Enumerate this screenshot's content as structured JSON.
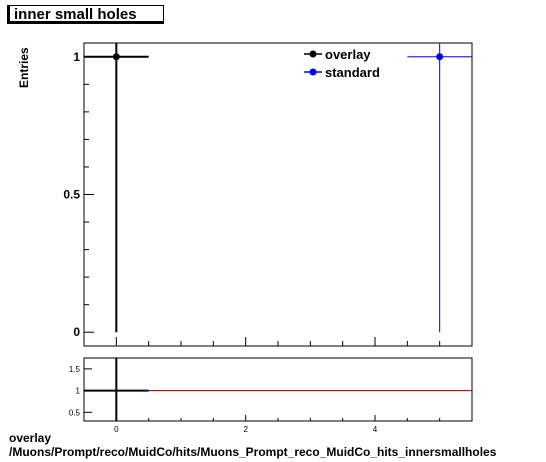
{
  "title": "inner small holes",
  "footer": {
    "line1": "overlay",
    "line2": "/Muons/Prompt/reco/MuidCo/hits/Muons_Prompt_reco_MuidCo_hits_innersmallholes"
  },
  "colors": {
    "overlay": "#000000",
    "standard": "#0000ff",
    "ratio_line": "#8b0000",
    "frame": "#000000"
  },
  "chart_data": [
    {
      "type": "scatter",
      "ylabel": "Entries",
      "xlim": [
        -0.5,
        5.5
      ],
      "ylim": [
        -0.05,
        1.05
      ],
      "yticks": [
        0,
        0.5,
        1
      ],
      "ytick_labels": [
        "0",
        "0.5",
        "1"
      ],
      "legend": {
        "placement": "top-right",
        "entries": [
          "overlay",
          "standard"
        ]
      },
      "series": [
        {
          "name": "overlay",
          "x": [
            0
          ],
          "y": [
            1
          ],
          "xerr": [
            0.5
          ]
        },
        {
          "name": "standard",
          "x": [
            5
          ],
          "y": [
            1
          ],
          "xerr": [
            0.5
          ]
        }
      ]
    },
    {
      "type": "line",
      "xlim": [
        -0.5,
        5.5
      ],
      "ylim": [
        0.3,
        1.75
      ],
      "xticks": [
        0,
        2,
        4
      ],
      "xtick_labels": [
        "0",
        "2",
        "4"
      ],
      "yticks": [
        0.5,
        1,
        1.5
      ],
      "ytick_labels": [
        "0.5",
        "1",
        "1.5"
      ],
      "reference_line": 1,
      "series": [
        {
          "name": "ratio",
          "x": [
            0
          ],
          "y": [
            1
          ],
          "xerr": [
            0.5
          ]
        }
      ]
    }
  ]
}
